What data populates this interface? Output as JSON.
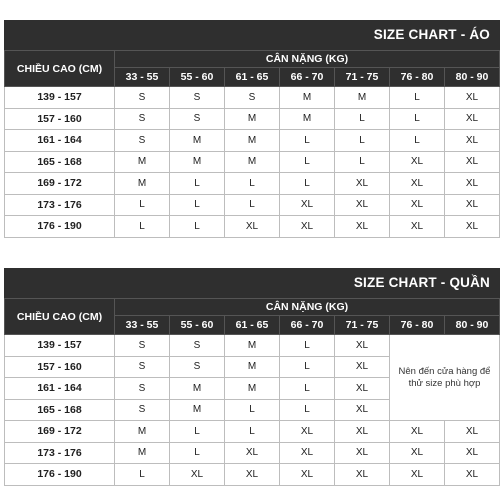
{
  "ao": {
    "title": "SIZE CHART - ÁO",
    "height_header": "CHIỀU CAO (CM)",
    "weight_header": "CÂN NẶNG (KG)",
    "weight_ranges": [
      "33 - 55",
      "55 - 60",
      "61 - 65",
      "66 - 70",
      "71 - 75",
      "76 - 80",
      "80 - 90"
    ],
    "rows": [
      {
        "height": "139 - 157",
        "sizes": [
          "S",
          "S",
          "S",
          "M",
          "M",
          "L",
          "XL"
        ]
      },
      {
        "height": "157 - 160",
        "sizes": [
          "S",
          "S",
          "M",
          "M",
          "L",
          "L",
          "XL"
        ]
      },
      {
        "height": "161 - 164",
        "sizes": [
          "S",
          "M",
          "M",
          "L",
          "L",
          "L",
          "XL"
        ]
      },
      {
        "height": "165 - 168",
        "sizes": [
          "M",
          "M",
          "M",
          "L",
          "L",
          "XL",
          "XL"
        ]
      },
      {
        "height": "169 - 172",
        "sizes": [
          "M",
          "L",
          "L",
          "L",
          "XL",
          "XL",
          "XL"
        ]
      },
      {
        "height": "173 - 176",
        "sizes": [
          "L",
          "L",
          "L",
          "XL",
          "XL",
          "XL",
          "XL"
        ]
      },
      {
        "height": "176 - 190",
        "sizes": [
          "L",
          "L",
          "XL",
          "XL",
          "XL",
          "XL",
          "XL"
        ]
      }
    ]
  },
  "quan": {
    "title": "SIZE CHART - QUẦN",
    "height_header": "CHIỀU CAO (CM)",
    "weight_header": "CÂN NẶNG (KG)",
    "weight_ranges": [
      "33 - 55",
      "55 - 60",
      "61 - 65",
      "66 - 70",
      "71 - 75",
      "76 - 80",
      "80 - 90"
    ],
    "note": "Nên đến cửa hàng để thử size phù hợp",
    "rows": [
      {
        "height": "139 - 157",
        "sizes": [
          "S",
          "S",
          "M",
          "L",
          "XL"
        ]
      },
      {
        "height": "157 - 160",
        "sizes": [
          "S",
          "S",
          "M",
          "L",
          "XL"
        ]
      },
      {
        "height": "161 - 164",
        "sizes": [
          "S",
          "M",
          "M",
          "L",
          "XL"
        ]
      },
      {
        "height": "165 - 168",
        "sizes": [
          "S",
          "M",
          "L",
          "L",
          "XL"
        ]
      },
      {
        "height": "169 - 172",
        "sizes": [
          "M",
          "L",
          "L",
          "XL",
          "XL",
          "XL",
          "XL"
        ]
      },
      {
        "height": "173 - 176",
        "sizes": [
          "M",
          "L",
          "XL",
          "XL",
          "XL",
          "XL",
          "XL"
        ]
      },
      {
        "height": "176 - 190",
        "sizes": [
          "L",
          "XL",
          "XL",
          "XL",
          "XL",
          "XL",
          "XL"
        ]
      }
    ]
  }
}
